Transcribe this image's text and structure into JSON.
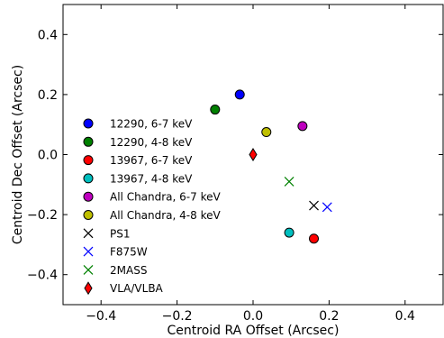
{
  "chart_data": {
    "type": "scatter",
    "xlabel": "Centroid RA Offset (Arcsec)",
    "ylabel": "Centroid Dec Offset (Arcsec)",
    "xlim": [
      -0.5,
      0.5
    ],
    "ylim": [
      -0.5,
      0.5
    ],
    "x_ticks": [
      -0.4,
      -0.2,
      0.0,
      0.2,
      0.4
    ],
    "x_tick_labels": [
      "−0.4",
      "−0.2",
      "0.0",
      "0.2",
      "0.4"
    ],
    "y_ticks": [
      0.4,
      0.2,
      0.0,
      -0.2,
      -0.4
    ],
    "y_tick_labels": [
      "0.4",
      "0.2",
      "0.0",
      "−0.2",
      "−0.4"
    ],
    "grid": false,
    "legend_position": "left",
    "series": [
      {
        "name": "12290, 6-7 keV",
        "marker": "circle",
        "color": "#0000ff",
        "x": -0.035,
        "y": 0.2
      },
      {
        "name": "12290, 4-8 keV",
        "marker": "circle",
        "color": "#008000",
        "x": -0.1,
        "y": 0.15
      },
      {
        "name": "13967, 6-7 keV",
        "marker": "circle",
        "color": "#ff0000",
        "x": 0.16,
        "y": -0.28
      },
      {
        "name": "13967, 4-8 keV",
        "marker": "circle",
        "color": "#00bfbf",
        "x": 0.095,
        "y": -0.26
      },
      {
        "name": "All Chandra,  6-7 keV",
        "marker": "circle",
        "color": "#bf00bf",
        "x": 0.13,
        "y": 0.095
      },
      {
        "name": "All Chandra, 4-8 keV",
        "marker": "circle",
        "color": "#bfbf00",
        "x": 0.035,
        "y": 0.075
      },
      {
        "name": "PS1",
        "marker": "x",
        "color": "#000000",
        "x": 0.16,
        "y": -0.17
      },
      {
        "name": "F875W",
        "marker": "x",
        "color": "#0000ff",
        "x": 0.195,
        "y": -0.175
      },
      {
        "name": "2MASS",
        "marker": "x",
        "color": "#008000",
        "x": 0.095,
        "y": -0.09
      },
      {
        "name": "VLA/VLBA",
        "marker": "diamond",
        "color": "#ff0000",
        "x": 0.0,
        "y": 0.0
      }
    ]
  }
}
